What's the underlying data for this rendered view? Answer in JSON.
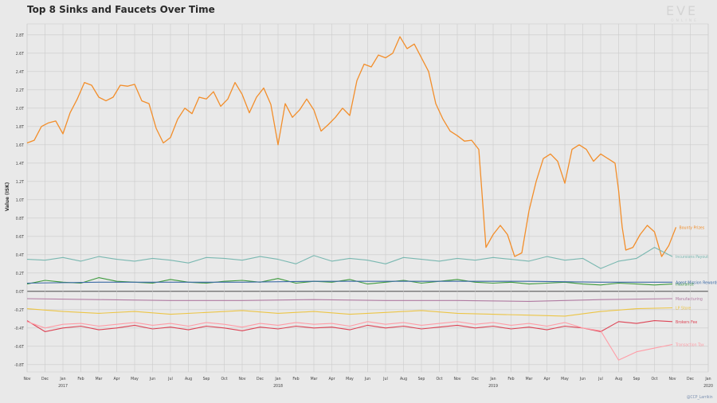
{
  "branding": {
    "logo": "EVE",
    "logo_sub": "ONLINE",
    "credit": "@CCP_Larrikin"
  },
  "chart_data": {
    "type": "line",
    "title": "Top 8 Sinks and Faucets Over Time",
    "xlabel": "",
    "ylabel": "Value (ISK)",
    "ylim": [
      -0.88,
      2.92
    ],
    "grid": true,
    "x_ticks": [
      {
        "label": "Nov",
        "year": ""
      },
      {
        "label": "Dec",
        "year": ""
      },
      {
        "label": "Jan",
        "year": "2017"
      },
      {
        "label": "Feb",
        "year": ""
      },
      {
        "label": "Mar",
        "year": ""
      },
      {
        "label": "Apr",
        "year": ""
      },
      {
        "label": "May",
        "year": ""
      },
      {
        "label": "Jun",
        "year": ""
      },
      {
        "label": "Jul",
        "year": ""
      },
      {
        "label": "Aug",
        "year": ""
      },
      {
        "label": "Sep",
        "year": ""
      },
      {
        "label": "Oct",
        "year": ""
      },
      {
        "label": "Nov",
        "year": ""
      },
      {
        "label": "Dec",
        "year": ""
      },
      {
        "label": "Jan",
        "year": "2018"
      },
      {
        "label": "Feb",
        "year": ""
      },
      {
        "label": "Mar",
        "year": ""
      },
      {
        "label": "Apr",
        "year": ""
      },
      {
        "label": "May",
        "year": ""
      },
      {
        "label": "Jun",
        "year": ""
      },
      {
        "label": "Jul",
        "year": ""
      },
      {
        "label": "Aug",
        "year": ""
      },
      {
        "label": "Sep",
        "year": ""
      },
      {
        "label": "Oct",
        "year": ""
      },
      {
        "label": "Nov",
        "year": ""
      },
      {
        "label": "Dec",
        "year": ""
      },
      {
        "label": "Jan",
        "year": "2019"
      },
      {
        "label": "Feb",
        "year": ""
      },
      {
        "label": "Mar",
        "year": ""
      },
      {
        "label": "Apr",
        "year": ""
      },
      {
        "label": "May",
        "year": ""
      },
      {
        "label": "Jun",
        "year": ""
      },
      {
        "label": "Jul",
        "year": ""
      },
      {
        "label": "Aug",
        "year": ""
      },
      {
        "label": "Sep",
        "year": ""
      },
      {
        "label": "Oct",
        "year": ""
      },
      {
        "label": "Nov",
        "year": ""
      },
      {
        "label": "Dec",
        "year": ""
      },
      {
        "label": "Jan",
        "year": "2020"
      }
    ],
    "y_ticks": [
      {
        "value": 2.8,
        "label": "2.8T"
      },
      {
        "value": 2.6,
        "label": "2.6T"
      },
      {
        "value": 2.4,
        "label": "2.4T"
      },
      {
        "value": 2.2,
        "label": "2.2T"
      },
      {
        "value": 2.0,
        "label": "2.0T"
      },
      {
        "value": 1.8,
        "label": "1.8T"
      },
      {
        "value": 1.6,
        "label": "1.6T"
      },
      {
        "value": 1.4,
        "label": "1.4T"
      },
      {
        "value": 1.2,
        "label": "1.2T"
      },
      {
        "value": 1.0,
        "label": "1.0T"
      },
      {
        "value": 0.8,
        "label": "0.8T"
      },
      {
        "value": 0.6,
        "label": "0.6T"
      },
      {
        "value": 0.4,
        "label": "0.4T"
      },
      {
        "value": 0.2,
        "label": "0.2T"
      },
      {
        "value": 0.0,
        "label": "0.0T"
      },
      {
        "value": -0.2,
        "label": "-0.2T"
      },
      {
        "value": -0.4,
        "label": "-0.4T"
      },
      {
        "value": -0.6,
        "label": "-0.6T"
      },
      {
        "value": -0.8,
        "label": "-0.8T"
      }
    ],
    "series": [
      {
        "name": "Bounty Prizes",
        "color": "#f28e2b",
        "x": [
          0,
          0.4,
          0.8,
          1.2,
          1.6,
          2,
          2.4,
          2.8,
          3.2,
          3.6,
          4,
          4.4,
          4.8,
          5.2,
          5.6,
          6,
          6.4,
          6.8,
          7.2,
          7.6,
          8,
          8.4,
          8.8,
          9.2,
          9.6,
          10,
          10.4,
          10.8,
          11.2,
          11.6,
          12,
          12.4,
          12.8,
          13.2,
          13.6,
          14,
          14.4,
          14.8,
          15.2,
          15.6,
          16,
          16.4,
          16.8,
          17.2,
          17.6,
          18,
          18.4,
          18.8,
          19.2,
          19.6,
          20,
          20.4,
          20.8,
          21.2,
          21.6,
          22,
          22.4,
          22.8,
          23.2,
          23.6,
          24,
          24.4,
          24.8,
          25.2,
          25.6,
          26,
          26.4,
          26.8,
          27.2,
          27.6,
          28,
          28.4,
          28.8,
          29.2,
          29.6,
          30,
          30.4,
          30.8,
          31.2,
          31.6,
          32,
          32.4,
          32.8,
          33,
          33.2,
          33.4,
          33.8,
          34.2,
          34.6,
          35,
          35.4,
          35.8,
          36.2
        ],
        "values": [
          1.62,
          1.65,
          1.8,
          1.84,
          1.86,
          1.72,
          1.95,
          2.1,
          2.28,
          2.25,
          2.12,
          2.08,
          2.12,
          2.25,
          2.24,
          2.26,
          2.08,
          2.05,
          1.78,
          1.62,
          1.68,
          1.88,
          2.0,
          1.94,
          2.12,
          2.1,
          2.18,
          2.02,
          2.1,
          2.28,
          2.15,
          1.95,
          2.12,
          2.22,
          2.04,
          1.6,
          2.05,
          1.9,
          1.98,
          2.1,
          1.98,
          1.75,
          1.82,
          1.9,
          2.0,
          1.92,
          2.3,
          2.48,
          2.45,
          2.58,
          2.55,
          2.6,
          2.78,
          2.65,
          2.7,
          2.55,
          2.4,
          2.05,
          1.88,
          1.75,
          1.7,
          1.64,
          1.65,
          1.55,
          0.48,
          0.62,
          0.72,
          0.62,
          0.38,
          0.42,
          0.88,
          1.2,
          1.45,
          1.5,
          1.42,
          1.18,
          1.55,
          1.6,
          1.55,
          1.42,
          1.5,
          1.45,
          1.4,
          1.1,
          0.7,
          0.45,
          0.48,
          0.62,
          0.72,
          0.65,
          0.38,
          0.5,
          0.7
        ]
      },
      {
        "name": "Incursions Payout",
        "color": "#7ab8b1",
        "x": [
          0,
          1,
          2,
          3,
          4,
          5,
          6,
          7,
          8,
          9,
          10,
          11,
          12,
          13,
          14,
          15,
          16,
          17,
          18,
          19,
          20,
          21,
          22,
          23,
          24,
          25,
          26,
          27,
          28,
          29,
          30,
          31,
          32,
          33,
          34,
          35,
          36
        ],
        "values": [
          0.35,
          0.34,
          0.37,
          0.33,
          0.38,
          0.35,
          0.33,
          0.36,
          0.34,
          0.31,
          0.37,
          0.36,
          0.34,
          0.38,
          0.35,
          0.3,
          0.39,
          0.33,
          0.36,
          0.34,
          0.3,
          0.37,
          0.35,
          0.33,
          0.36,
          0.34,
          0.37,
          0.35,
          0.33,
          0.38,
          0.34,
          0.36,
          0.25,
          0.33,
          0.36,
          0.48,
          0.38
        ]
      },
      {
        "name": "Insurance",
        "color": "#3c9a3c",
        "x": [
          0,
          1,
          2,
          3,
          4,
          5,
          6,
          7,
          8,
          9,
          10,
          11,
          12,
          13,
          14,
          15,
          16,
          17,
          18,
          19,
          20,
          21,
          22,
          23,
          24,
          25,
          26,
          27,
          28,
          29,
          30,
          31,
          32,
          33,
          34,
          35,
          36
        ],
        "values": [
          0.08,
          0.12,
          0.1,
          0.09,
          0.15,
          0.11,
          0.1,
          0.09,
          0.13,
          0.1,
          0.09,
          0.11,
          0.12,
          0.1,
          0.14,
          0.09,
          0.11,
          0.1,
          0.13,
          0.08,
          0.1,
          0.12,
          0.09,
          0.11,
          0.13,
          0.1,
          0.09,
          0.1,
          0.08,
          0.09,
          0.1,
          0.08,
          0.07,
          0.09,
          0.08,
          0.07,
          0.08
        ]
      },
      {
        "name": "Agent Mission Rewards",
        "color": "#3c6aa6",
        "x": [
          0,
          4,
          8,
          12,
          16,
          20,
          24,
          28,
          32,
          36
        ],
        "values": [
          0.09,
          0.1,
          0.1,
          0.1,
          0.11,
          0.11,
          0.11,
          0.11,
          0.1,
          0.1
        ]
      },
      {
        "name": "Manufacturing",
        "color": "#b07aa1",
        "x": [
          0,
          4,
          8,
          12,
          16,
          20,
          24,
          28,
          32,
          36
        ],
        "values": [
          -0.08,
          -0.09,
          -0.1,
          -0.1,
          -0.09,
          -0.1,
          -0.1,
          -0.11,
          -0.09,
          -0.08
        ]
      },
      {
        "name": "LP Store",
        "color": "#ecc546",
        "x": [
          0,
          2,
          4,
          6,
          8,
          10,
          12,
          14,
          16,
          18,
          20,
          22,
          24,
          26,
          28,
          30,
          32,
          34,
          36
        ],
        "values": [
          -0.19,
          -0.22,
          -0.24,
          -0.22,
          -0.25,
          -0.23,
          -0.21,
          -0.24,
          -0.22,
          -0.25,
          -0.23,
          -0.21,
          -0.24,
          -0.25,
          -0.26,
          -0.27,
          -0.22,
          -0.19,
          -0.18
        ]
      },
      {
        "name": "Brokers Fee",
        "color": "#dd4455",
        "x": [
          0,
          1,
          2,
          3,
          4,
          5,
          6,
          7,
          8,
          9,
          10,
          11,
          12,
          13,
          14,
          15,
          16,
          17,
          18,
          19,
          20,
          21,
          22,
          23,
          24,
          25,
          26,
          27,
          28,
          29,
          30,
          31,
          32,
          33,
          34,
          35,
          36
        ],
        "values": [
          -0.32,
          -0.44,
          -0.4,
          -0.38,
          -0.42,
          -0.4,
          -0.37,
          -0.41,
          -0.39,
          -0.42,
          -0.38,
          -0.4,
          -0.43,
          -0.39,
          -0.41,
          -0.38,
          -0.4,
          -0.39,
          -0.42,
          -0.37,
          -0.4,
          -0.38,
          -0.41,
          -0.39,
          -0.37,
          -0.4,
          -0.38,
          -0.41,
          -0.39,
          -0.42,
          -0.38,
          -0.4,
          -0.44,
          -0.33,
          -0.35,
          -0.32,
          -0.33
        ]
      },
      {
        "name": "Transaction Tax",
        "color": "#ff9da7",
        "x": [
          0,
          1,
          2,
          3,
          4,
          5,
          6,
          7,
          8,
          9,
          10,
          11,
          12,
          13,
          14,
          15,
          16,
          17,
          18,
          19,
          20,
          21,
          22,
          23,
          24,
          25,
          26,
          27,
          28,
          29,
          30,
          31,
          32,
          33,
          34,
          35,
          36
        ],
        "values": [
          -0.33,
          -0.4,
          -0.36,
          -0.35,
          -0.38,
          -0.36,
          -0.34,
          -0.37,
          -0.35,
          -0.38,
          -0.34,
          -0.36,
          -0.39,
          -0.35,
          -0.37,
          -0.34,
          -0.36,
          -0.35,
          -0.38,
          -0.33,
          -0.36,
          -0.34,
          -0.37,
          -0.35,
          -0.33,
          -0.36,
          -0.34,
          -0.37,
          -0.35,
          -0.38,
          -0.34,
          -0.4,
          -0.43,
          -0.75,
          -0.66,
          -0.62,
          -0.58
        ]
      }
    ]
  }
}
